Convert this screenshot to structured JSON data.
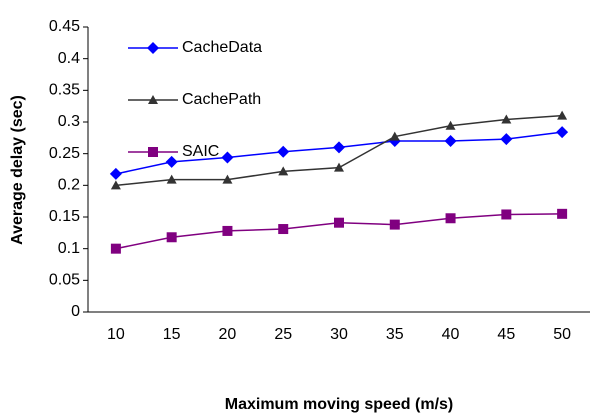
{
  "chart_data": {
    "type": "line",
    "x_label": "Maximum moving speed (m/s)",
    "y_label": "Average delay (sec)",
    "categories": [
      "10",
      "15",
      "20",
      "25",
      "30",
      "35",
      "40",
      "45",
      "50"
    ],
    "series": [
      {
        "name": "CacheData",
        "color": "#0000ff",
        "marker": "diamond",
        "values": [
          0.218,
          0.237,
          0.244,
          0.253,
          0.26,
          0.27,
          0.27,
          0.273,
          0.284
        ]
      },
      {
        "name": "CachePath",
        "color": "#333333",
        "marker": "triangle",
        "values": [
          0.2,
          0.209,
          0.209,
          0.222,
          0.228,
          0.277,
          0.294,
          0.304,
          0.31
        ]
      },
      {
        "name": "SAIC",
        "color": "#800080",
        "marker": "square",
        "values": [
          0.1,
          0.118,
          0.128,
          0.131,
          0.141,
          0.138,
          0.148,
          0.154,
          0.155
        ]
      }
    ],
    "ylim": [
      0,
      0.45
    ],
    "yticks": [
      0,
      0.05,
      0.1,
      0.15,
      0.2,
      0.25,
      0.3,
      0.35,
      0.4,
      0.45
    ],
    "legend": "upper left"
  }
}
